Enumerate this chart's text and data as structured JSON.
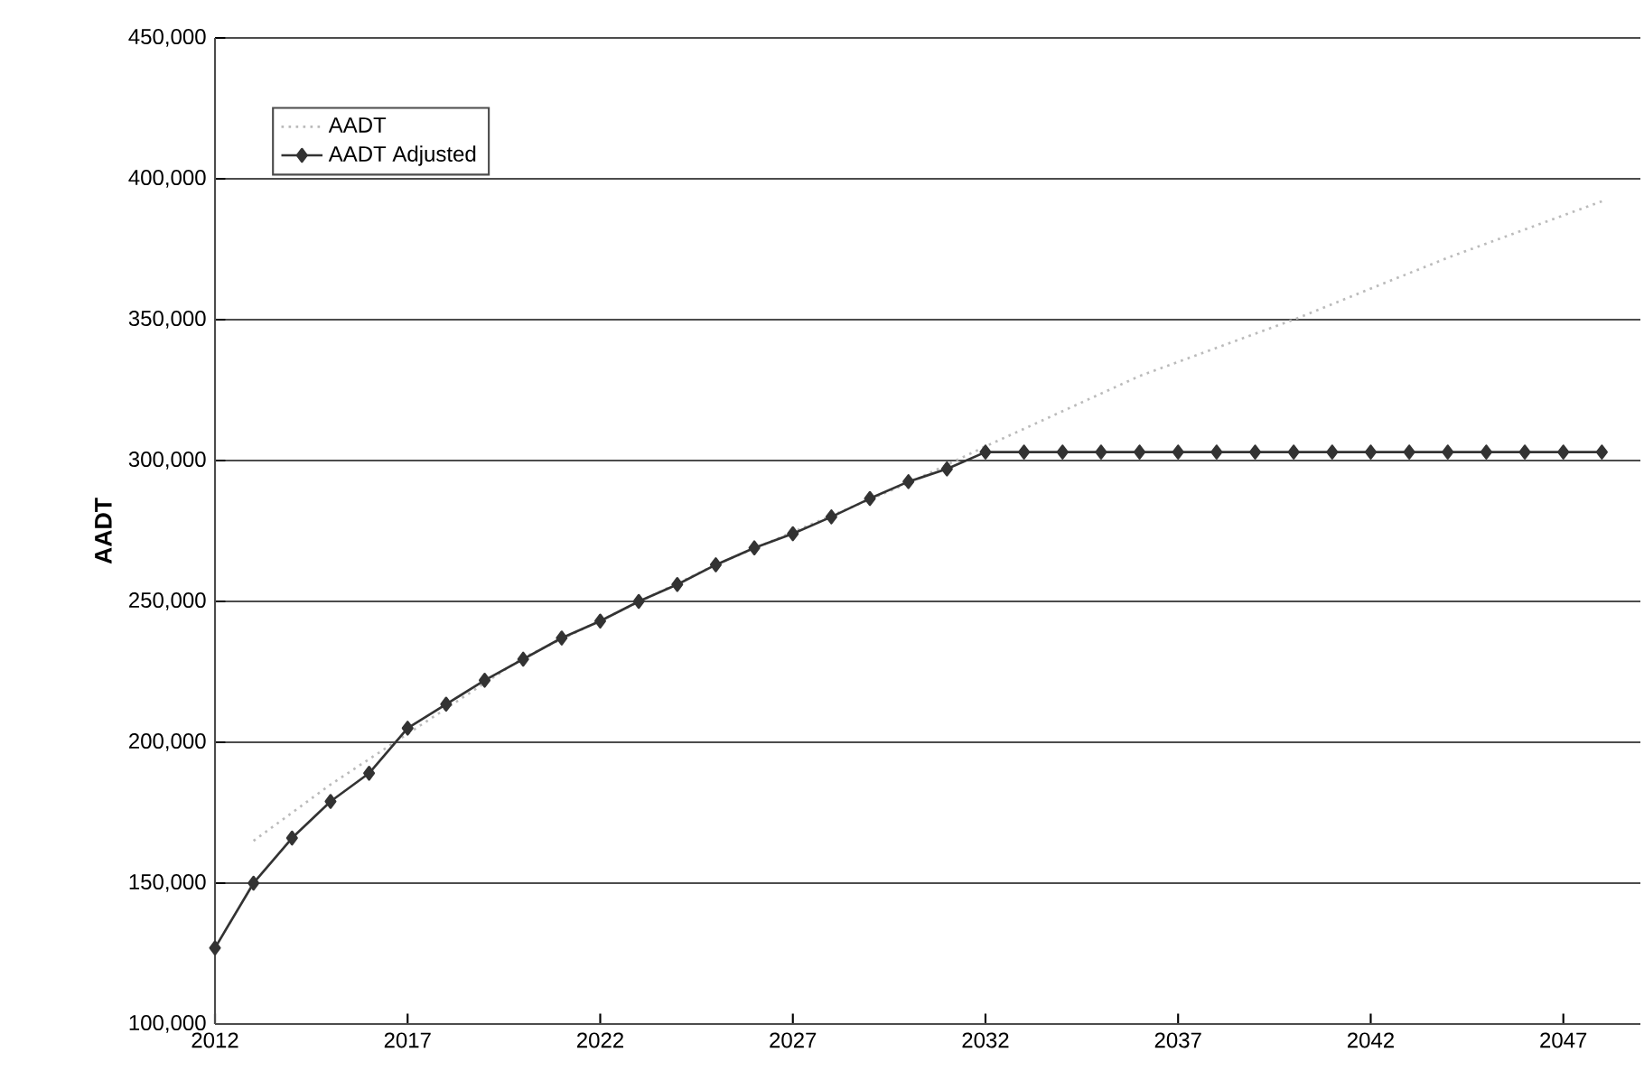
{
  "chart_data": {
    "type": "line",
    "ylabel": "AADT",
    "xlim": [
      2012,
      2049
    ],
    "xticks": [
      2012,
      2017,
      2022,
      2027,
      2032,
      2037,
      2042,
      2047
    ],
    "ylim": [
      100000,
      450000
    ],
    "yticks": [
      {
        "value": 100000,
        "label": "100,000"
      },
      {
        "value": 150000,
        "label": "150,000"
      },
      {
        "value": 200000,
        "label": "200,000"
      },
      {
        "value": 250000,
        "label": "250,000"
      },
      {
        "value": 300000,
        "label": "300,000"
      },
      {
        "value": 350000,
        "label": "350,000"
      },
      {
        "value": 400000,
        "label": "400,000"
      },
      {
        "value": 450000,
        "label": "450,000"
      }
    ],
    "grid": "y",
    "legend": "top left",
    "series": [
      {
        "name": "AADT",
        "color": "#bbbbbb",
        "line_style": "dotted",
        "marker": "none",
        "x": [
          2013,
          2015,
          2017,
          2020,
          2025,
          2030,
          2032,
          2036,
          2040,
          2044,
          2048
        ],
        "values": [
          165000,
          185000,
          203000,
          230000,
          263000,
          292000,
          305000,
          330000,
          350000,
          372000,
          392000
        ]
      },
      {
        "name": "AADT Adjusted",
        "color": "#333333",
        "line_style": "solid",
        "marker": "diamond",
        "x": [
          2012,
          2013,
          2014,
          2015,
          2016,
          2017,
          2018,
          2019,
          2020,
          2021,
          2022,
          2023,
          2024,
          2025,
          2026,
          2027,
          2028,
          2029,
          2030,
          2031,
          2032,
          2033,
          2034,
          2035,
          2036,
          2037,
          2038,
          2039,
          2040,
          2041,
          2042,
          2043,
          2044,
          2045,
          2046,
          2047,
          2048
        ],
        "values": [
          127000,
          150000,
          166000,
          179000,
          189000,
          205000,
          213500,
          222000,
          229500,
          237000,
          243000,
          250000,
          256000,
          263000,
          269000,
          274000,
          280000,
          286500,
          292500,
          297000,
          303000,
          303000,
          303000,
          303000,
          303000,
          303000,
          303000,
          303000,
          303000,
          303000,
          303000,
          303000,
          303000,
          303000,
          303000,
          303000,
          303000
        ]
      }
    ]
  }
}
